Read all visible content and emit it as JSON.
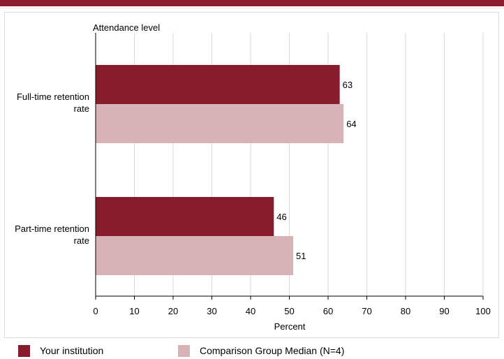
{
  "chart_data": {
    "type": "bar",
    "orientation": "horizontal",
    "title": "Attendance level",
    "xlabel": "Percent",
    "xlim": [
      0,
      100
    ],
    "xticks": [
      "0",
      "10",
      "20",
      "30",
      "40",
      "50",
      "60",
      "70",
      "80",
      "90",
      "100"
    ],
    "grid": true,
    "categories": [
      {
        "line1": "Full-time retention",
        "line2": "rate"
      },
      {
        "line1": "Part-time retention",
        "line2": "rate"
      }
    ],
    "series": [
      {
        "name": "Your institution",
        "values": [
          63,
          46
        ],
        "color": "#861c2c"
      },
      {
        "name": "Comparison Group Median (N=4)",
        "values": [
          64,
          51
        ],
        "color": "#d7b3b8"
      }
    ],
    "legend_position": "bottom"
  },
  "colors": {
    "top_bar": "#8a1c2b",
    "grid": "#d9d9d9",
    "axis": "#000000"
  }
}
